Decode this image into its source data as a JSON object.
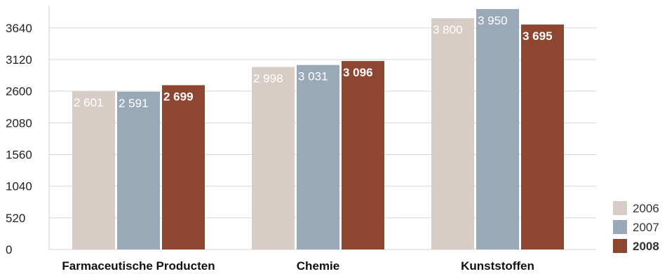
{
  "chart_data": {
    "type": "bar",
    "categories": [
      "Farmaceutische Producten",
      "Chemie",
      "Kunststoffen"
    ],
    "series": [
      {
        "name": "2006",
        "values": [
          2601,
          2998,
          3800
        ],
        "labels": [
          "2 601",
          "2 998",
          "3 800"
        ],
        "color": "#d8cdc6",
        "text_color": "#ffffff",
        "bold": false
      },
      {
        "name": "2007",
        "values": [
          2591,
          3031,
          3950
        ],
        "labels": [
          "2 591",
          "3 031",
          "3 950"
        ],
        "color": "#9aa9b8",
        "text_color": "#ffffff",
        "bold": false
      },
      {
        "name": "2008",
        "values": [
          2699,
          3096,
          3695
        ],
        "labels": [
          "2 699",
          "3 096",
          "3 695"
        ],
        "color": "#8e4631",
        "text_color": "#ffffff",
        "legend_text_color": "#8e4631",
        "bold": true
      }
    ],
    "y_ticks": [
      0,
      520,
      1040,
      1560,
      2080,
      2600,
      3120,
      3640
    ],
    "ylim": [
      0,
      4160
    ],
    "grid": true,
    "legend_position": "bottom-right",
    "title": "",
    "xlabel": "",
    "ylabel": ""
  }
}
